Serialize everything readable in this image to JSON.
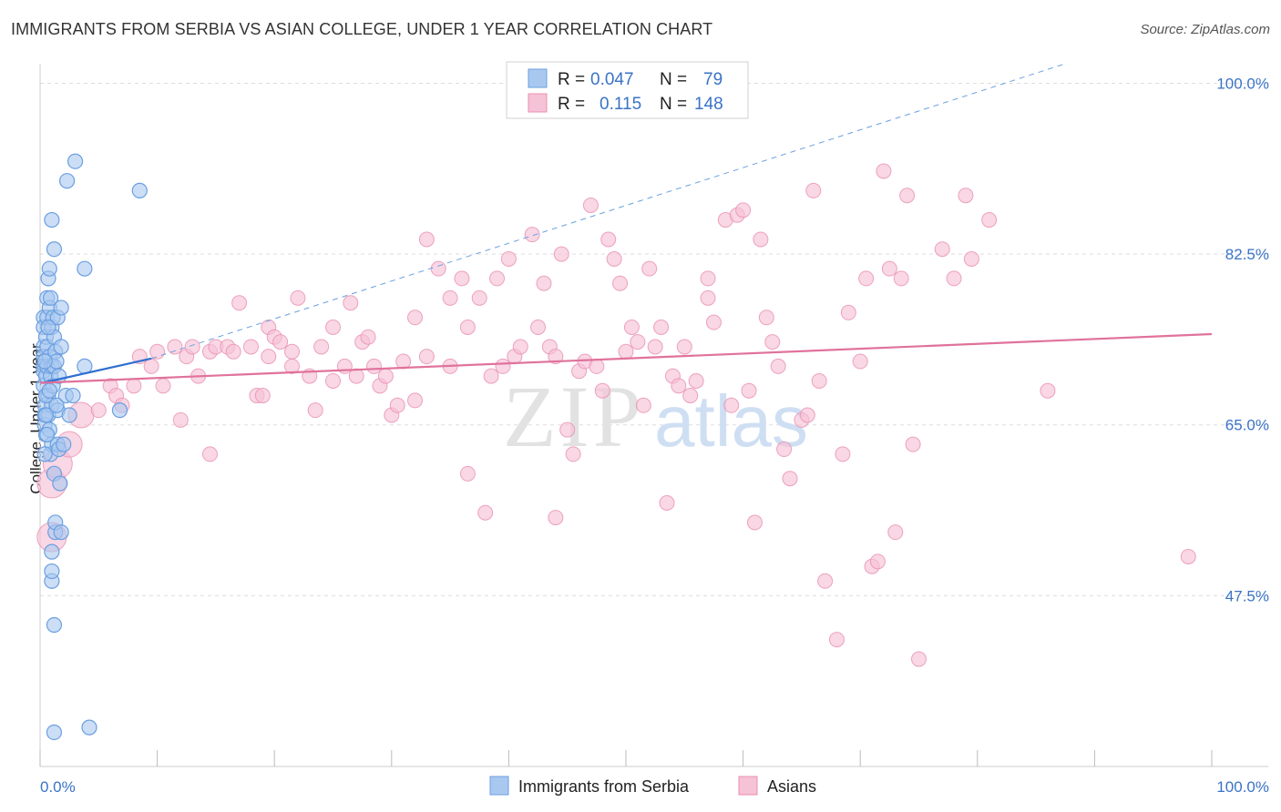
{
  "header": {
    "title": "IMMIGRANTS FROM SERBIA VS ASIAN COLLEGE, UNDER 1 YEAR CORRELATION CHART",
    "source": "Source: ZipAtlas.com"
  },
  "watermark": {
    "zip": "ZIP",
    "atlas": "atlas"
  },
  "chart_data": {
    "type": "scatter",
    "title": "IMMIGRANTS FROM SERBIA VS ASIAN COLLEGE, UNDER 1 YEAR CORRELATION CHART",
    "xlabel": "",
    "ylabel": "College, Under 1 year",
    "xlim": [
      0,
      100
    ],
    "ylim": [
      30,
      102
    ],
    "x_tick_labels": [
      "0.0%",
      "100.0%"
    ],
    "y_ticks": [
      100.0,
      82.5,
      65.0,
      47.5
    ],
    "y_tick_labels": [
      "100.0%",
      "82.5%",
      "65.0%",
      "47.5%"
    ],
    "grid": true,
    "legend": {
      "placement": "top-center",
      "rows": [
        {
          "r_label": "R =",
          "r_value": "0.047",
          "n_label": "N =",
          "n_value": "79"
        },
        {
          "r_label": "R =",
          "r_value": "0.115",
          "n_label": "N =",
          "n_value": "148"
        }
      ]
    },
    "series": [
      {
        "name": "Immigrants from Serbia",
        "color": "#6b9fe0",
        "fill": "#a9c8f0",
        "trend": {
          "x": [
            0.2,
            9.5
          ],
          "y": [
            69.3,
            71.8
          ],
          "color": "#2f6fd0"
        },
        "trend_extension": {
          "x": [
            9.5,
            87.5
          ],
          "y": [
            71.8,
            102
          ],
          "color": "#6b9fe0"
        },
        "points": [
          [
            0.3,
            76
          ],
          [
            0.3,
            75
          ],
          [
            0.3,
            73
          ],
          [
            0.3,
            72
          ],
          [
            0.3,
            71
          ],
          [
            0.3,
            70.5
          ],
          [
            0.3,
            69
          ],
          [
            0.4,
            67
          ],
          [
            0.4,
            66
          ],
          [
            0.4,
            65
          ],
          [
            0.5,
            64
          ],
          [
            0.5,
            74
          ],
          [
            0.5,
            70
          ],
          [
            0.6,
            78
          ],
          [
            0.6,
            76
          ],
          [
            0.6,
            73
          ],
          [
            0.6,
            71
          ],
          [
            0.7,
            80
          ],
          [
            0.7,
            68
          ],
          [
            0.7,
            66
          ],
          [
            0.8,
            81
          ],
          [
            0.8,
            77
          ],
          [
            0.8,
            72
          ],
          [
            0.8,
            64.5
          ],
          [
            0.9,
            70
          ],
          [
            0.9,
            62
          ],
          [
            1.0,
            86
          ],
          [
            1.0,
            75
          ],
          [
            1.0,
            71
          ],
          [
            1.0,
            67
          ],
          [
            1.0,
            63
          ],
          [
            1.0,
            52
          ],
          [
            1.0,
            49
          ],
          [
            1.0,
            50
          ],
          [
            1.1,
            76
          ],
          [
            1.2,
            83
          ],
          [
            1.2,
            74
          ],
          [
            1.2,
            71
          ],
          [
            1.2,
            60
          ],
          [
            1.3,
            72.5
          ],
          [
            1.3,
            54
          ],
          [
            1.3,
            55
          ],
          [
            1.4,
            71.5
          ],
          [
            1.5,
            76
          ],
          [
            1.5,
            66.5
          ],
          [
            1.5,
            63
          ],
          [
            1.6,
            62.5
          ],
          [
            1.7,
            59
          ],
          [
            1.8,
            77
          ],
          [
            1.8,
            73
          ],
          [
            1.8,
            54
          ],
          [
            2.2,
            68
          ],
          [
            2.5,
            66
          ],
          [
            2.8,
            68
          ],
          [
            3.0,
            92
          ],
          [
            3.8,
            71
          ],
          [
            3.8,
            81
          ],
          [
            2.3,
            90
          ],
          [
            8.5,
            89
          ],
          [
            6.8,
            66.5
          ],
          [
            1.2,
            44.5
          ],
          [
            1.2,
            33.5
          ],
          [
            4.2,
            34
          ],
          [
            0.4,
            62
          ],
          [
            0.5,
            68
          ],
          [
            0.6,
            64
          ],
          [
            0.9,
            78
          ],
          [
            1.1,
            69
          ],
          [
            0.7,
            75
          ],
          [
            1.4,
            67
          ],
          [
            2.0,
            63
          ],
          [
            0.4,
            71.5
          ],
          [
            0.8,
            68.5
          ],
          [
            0.5,
            66
          ],
          [
            1.6,
            70
          ]
        ],
        "sizes_note": "mostly 8px radius"
      },
      {
        "name": "Asians",
        "color": "#e98fb2",
        "fill": "#f6c2d5",
        "trend": {
          "x": [
            0,
            100
          ],
          "y": [
            69.3,
            74.3
          ],
          "color": "#e0729b"
        },
        "points": [
          [
            1.0,
            53.5
          ],
          [
            1.0,
            59
          ],
          [
            1.5,
            61
          ],
          [
            2.5,
            63
          ],
          [
            3.5,
            66
          ],
          [
            5.0,
            66.5
          ],
          [
            6.0,
            69
          ],
          [
            6.5,
            68
          ],
          [
            7.0,
            67
          ],
          [
            8.0,
            69
          ],
          [
            8.5,
            72
          ],
          [
            9.5,
            71
          ],
          [
            10.0,
            72.5
          ],
          [
            10.5,
            69
          ],
          [
            11.5,
            73
          ],
          [
            12.0,
            65.5
          ],
          [
            12.5,
            72
          ],
          [
            13.0,
            73
          ],
          [
            13.5,
            70
          ],
          [
            14.5,
            72.5
          ],
          [
            14.5,
            62
          ],
          [
            15.0,
            73
          ],
          [
            16.0,
            73
          ],
          [
            16.5,
            72.5
          ],
          [
            17.0,
            77.5
          ],
          [
            18.0,
            73
          ],
          [
            18.5,
            68
          ],
          [
            19.0,
            68
          ],
          [
            19.5,
            72
          ],
          [
            19.5,
            75
          ],
          [
            20.0,
            74
          ],
          [
            20.5,
            73.5
          ],
          [
            21.5,
            71
          ],
          [
            21.5,
            72.5
          ],
          [
            22.0,
            78
          ],
          [
            23.0,
            70
          ],
          [
            23.5,
            66.5
          ],
          [
            24.0,
            73
          ],
          [
            25.0,
            69.5
          ],
          [
            25.0,
            75
          ],
          [
            26.0,
            71
          ],
          [
            26.5,
            77.5
          ],
          [
            27.0,
            70
          ],
          [
            27.5,
            73.5
          ],
          [
            28.0,
            74
          ],
          [
            28.5,
            71
          ],
          [
            29.0,
            69
          ],
          [
            29.5,
            70
          ],
          [
            30.0,
            66
          ],
          [
            30.5,
            67
          ],
          [
            31.0,
            71.5
          ],
          [
            32.0,
            76
          ],
          [
            32.0,
            67.5
          ],
          [
            33.0,
            84
          ],
          [
            33.0,
            72
          ],
          [
            34.0,
            81
          ],
          [
            35.0,
            78
          ],
          [
            35.0,
            71
          ],
          [
            36.0,
            80
          ],
          [
            36.5,
            75
          ],
          [
            36.5,
            60
          ],
          [
            37.5,
            78
          ],
          [
            38.0,
            56
          ],
          [
            38.5,
            70
          ],
          [
            39.0,
            80
          ],
          [
            39.5,
            71
          ],
          [
            40.0,
            82
          ],
          [
            40.5,
            72
          ],
          [
            41.0,
            73
          ],
          [
            42.0,
            84.5
          ],
          [
            42.5,
            75
          ],
          [
            43.0,
            79.5
          ],
          [
            43.5,
            73
          ],
          [
            44.0,
            55.5
          ],
          [
            44.0,
            72
          ],
          [
            44.5,
            82.5
          ],
          [
            45.0,
            64.5
          ],
          [
            45.5,
            62
          ],
          [
            46.0,
            70.5
          ],
          [
            46.5,
            71.5
          ],
          [
            47.0,
            87.5
          ],
          [
            47.5,
            71
          ],
          [
            48.0,
            68.5
          ],
          [
            48.5,
            84
          ],
          [
            49.0,
            82
          ],
          [
            49.5,
            79.5
          ],
          [
            50.0,
            72.5
          ],
          [
            50.5,
            75
          ],
          [
            51.0,
            73.5
          ],
          [
            51.5,
            67
          ],
          [
            52.0,
            81
          ],
          [
            52.5,
            73
          ],
          [
            53.0,
            75
          ],
          [
            53.5,
            57
          ],
          [
            54.0,
            70
          ],
          [
            54.5,
            69
          ],
          [
            55.0,
            73
          ],
          [
            55.5,
            68
          ],
          [
            56.0,
            69.5
          ],
          [
            57.0,
            80
          ],
          [
            57.0,
            78
          ],
          [
            57.5,
            75.5
          ],
          [
            58.5,
            86
          ],
          [
            59.0,
            67
          ],
          [
            59.5,
            86.5
          ],
          [
            60.0,
            87
          ],
          [
            60.5,
            68.5
          ],
          [
            61.0,
            55
          ],
          [
            61.5,
            84
          ],
          [
            62.0,
            76
          ],
          [
            62.5,
            73.5
          ],
          [
            63.0,
            71
          ],
          [
            63.5,
            62.5
          ],
          [
            64.0,
            59.5
          ],
          [
            65.0,
            65.5
          ],
          [
            65.5,
            66
          ],
          [
            66.0,
            89
          ],
          [
            66.5,
            69.5
          ],
          [
            67.0,
            49
          ],
          [
            68.0,
            43
          ],
          [
            68.5,
            62
          ],
          [
            69.0,
            76.5
          ],
          [
            70.0,
            71.5
          ],
          [
            70.5,
            80
          ],
          [
            71.0,
            50.5
          ],
          [
            71.5,
            51
          ],
          [
            72.0,
            91
          ],
          [
            72.5,
            81
          ],
          [
            73.0,
            54
          ],
          [
            73.5,
            80
          ],
          [
            74.0,
            88.5
          ],
          [
            74.5,
            63
          ],
          [
            75.0,
            41
          ],
          [
            77.0,
            83
          ],
          [
            78.0,
            80
          ],
          [
            79.0,
            88.5
          ],
          [
            79.5,
            82
          ],
          [
            81.0,
            86
          ],
          [
            86.0,
            68.5
          ],
          [
            98.0,
            51.5
          ]
        ],
        "large_points_note": "several points near x<5 drawn with larger radii"
      }
    ]
  },
  "bottom_legend": {
    "items": [
      {
        "label": "Immigrants from Serbia",
        "color": "#a9c8f0",
        "stroke": "#6b9fe0"
      },
      {
        "label": "Asians",
        "color": "#f6c2d5",
        "stroke": "#e98fb2"
      }
    ]
  }
}
